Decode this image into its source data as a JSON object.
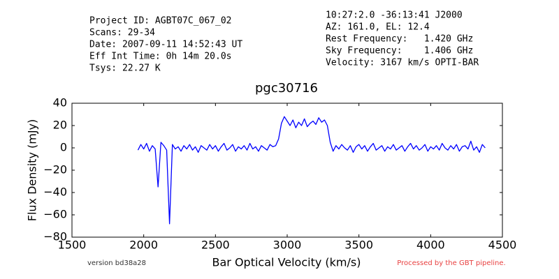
{
  "chart_data": {
    "type": "line",
    "title": "pgc30716",
    "xlabel": "Bar Optical Velocity (km/s)",
    "ylabel": "Flux Density (mJy)",
    "info_left": [
      "Project ID: AGBT07C_067_02",
      "Scans: 29-34",
      "Date: 2007-09-11 14:52:43 UT",
      "Eff Int Time: 0h 14m 20.0s",
      "Tsys: 22.27 K"
    ],
    "info_right": [
      "10:27:2.0 -36:13:41 J2000",
      "AZ: 161.0, EL: 12.4",
      "Rest Frequency:   1.420 GHz",
      "Sky Frequency:    1.406 GHz",
      "Velocity: 3167 km/s OPTI-BAR"
    ],
    "footer_left": "version bd38a28",
    "footer_right": "Processed by the GBT pipeline.",
    "color": "#0000ff",
    "xlim": [
      1500,
      4500
    ],
    "xticks": [
      1500,
      2000,
      2500,
      3000,
      3500,
      4000,
      4500
    ],
    "ylim": [
      -80,
      40
    ],
    "yticks": [
      {
        "value": -80,
        "label": "−80"
      },
      {
        "value": -60,
        "label": "−60"
      },
      {
        "value": -40,
        "label": "−40"
      },
      {
        "value": -20,
        "label": "−20"
      },
      0,
      20,
      40
    ],
    "x": [
      1960,
      1980,
      2000,
      2020,
      2040,
      2060,
      2080,
      2100,
      2120,
      2140,
      2160,
      2180,
      2200,
      2220,
      2240,
      2260,
      2280,
      2300,
      2320,
      2340,
      2360,
      2380,
      2400,
      2420,
      2440,
      2460,
      2480,
      2500,
      2520,
      2540,
      2560,
      2580,
      2600,
      2620,
      2640,
      2660,
      2680,
      2700,
      2720,
      2740,
      2760,
      2780,
      2800,
      2820,
      2840,
      2860,
      2880,
      2900,
      2920,
      2940,
      2960,
      2980,
      3000,
      3020,
      3040,
      3060,
      3080,
      3100,
      3120,
      3140,
      3160,
      3180,
      3200,
      3220,
      3240,
      3260,
      3280,
      3300,
      3320,
      3340,
      3360,
      3380,
      3400,
      3420,
      3440,
      3460,
      3480,
      3500,
      3520,
      3540,
      3560,
      3580,
      3600,
      3620,
      3640,
      3660,
      3680,
      3700,
      3720,
      3740,
      3760,
      3780,
      3800,
      3820,
      3840,
      3860,
      3880,
      3900,
      3920,
      3940,
      3960,
      3980,
      4000,
      4020,
      4040,
      4060,
      4080,
      4100,
      4120,
      4140,
      4160,
      4180,
      4200,
      4220,
      4240,
      4260,
      4280,
      4300,
      4320,
      4340,
      4360,
      4380
    ],
    "values": [
      -2,
      3,
      -1,
      4,
      -3,
      2,
      -1,
      -35,
      5,
      2,
      -2,
      -68,
      3,
      -1,
      1,
      -3,
      2,
      -1,
      3,
      -2,
      1,
      -4,
      2,
      0,
      -2,
      3,
      -1,
      2,
      -3,
      1,
      4,
      -2,
      0,
      3,
      -3,
      1,
      -1,
      2,
      -2,
      4,
      -1,
      1,
      -3,
      2,
      0,
      -2,
      3,
      1,
      2,
      8,
      22,
      28,
      24,
      20,
      25,
      18,
      23,
      20,
      26,
      19,
      22,
      24,
      21,
      27,
      23,
      25,
      20,
      5,
      -3,
      2,
      -1,
      3,
      0,
      -2,
      2,
      -4,
      1,
      3,
      -1,
      2,
      -3,
      1,
      4,
      -2,
      0,
      2,
      -3,
      1,
      -1,
      3,
      -2,
      0,
      2,
      -3,
      1,
      4,
      -1,
      2,
      -2,
      0,
      3,
      -3,
      1,
      -1,
      2,
      -2,
      4,
      0,
      -2,
      2,
      -1,
      3,
      -3,
      1,
      2,
      -1,
      6,
      -2,
      1,
      -4,
      3,
      0
    ]
  }
}
